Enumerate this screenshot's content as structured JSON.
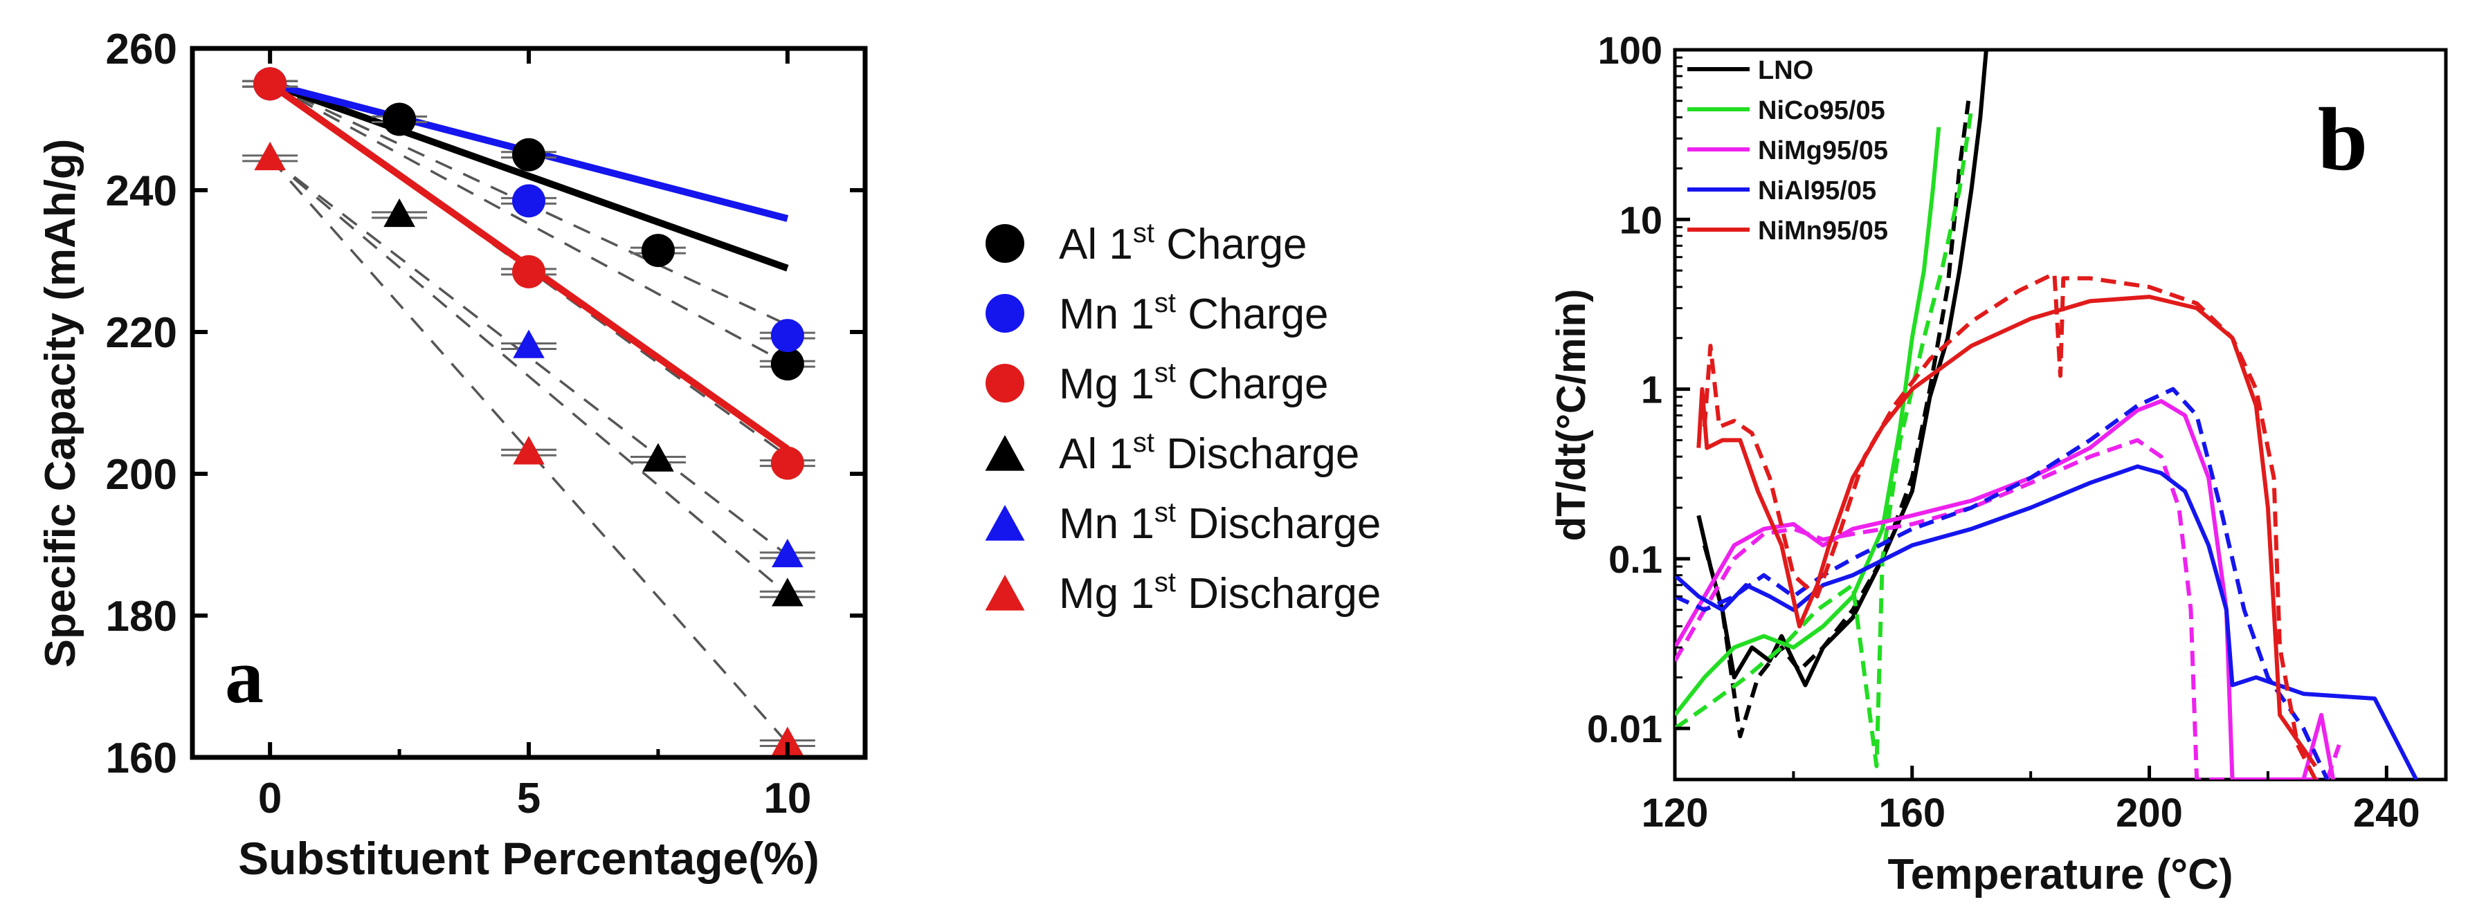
{
  "colors": {
    "black": "#000000",
    "blue": "#1515ee",
    "red": "#e11b1b",
    "green": "#22dd22",
    "magenta": "#ee22ee",
    "grey": "#555555"
  },
  "chart_data": [
    {
      "type": "scatter",
      "panel_label": "a",
      "xlabel": "Substituent Percentage(%)",
      "ylabel": "Specific Capacity (mAh/g)",
      "xlim": [
        -1.5,
        11.5
      ],
      "ylim": [
        160,
        260
      ],
      "xticks": [
        0,
        5,
        10
      ],
      "yticks": [
        160,
        180,
        200,
        220,
        240,
        260
      ],
      "series": [
        {
          "name": "Al 1st Charge",
          "label_main": "Al 1",
          "label_sup": "st",
          "label_tail": " Charge",
          "color": "#000000",
          "marker": "circle",
          "x": [
            0,
            2.5,
            5,
            7.5,
            10
          ],
          "y": [
            255,
            250,
            245,
            231.5,
            215.5
          ],
          "fit": [
            [
              0,
              255
            ],
            [
              10,
              229
            ]
          ]
        },
        {
          "name": "Mn 1st Charge",
          "label_main": "Mn 1",
          "label_sup": "st",
          "label_tail": " Charge",
          "color": "#1515ee",
          "marker": "circle",
          "x": [
            0,
            5,
            10
          ],
          "y": [
            255,
            238.5,
            219.5
          ],
          "fit": [
            [
              0,
              255
            ],
            [
              10,
              236
            ]
          ]
        },
        {
          "name": "Mg 1st Charge",
          "label_main": "Mg 1",
          "label_sup": "st",
          "label_tail": " Charge",
          "color": "#e11b1b",
          "marker": "circle",
          "x": [
            0,
            5,
            10
          ],
          "y": [
            255,
            228.5,
            201.5
          ],
          "fit": [
            [
              0,
              255
            ],
            [
              10,
              203.5
            ]
          ]
        },
        {
          "name": "Al 1st Discharge",
          "label_main": "Al 1",
          "label_sup": "st",
          "label_tail": " Discharge",
          "color": "#000000",
          "marker": "triangle",
          "x": [
            2.5,
            7.5,
            10
          ],
          "y": [
            236.5,
            202,
            183
          ],
          "fit": null
        },
        {
          "name": "Mn 1st Discharge",
          "label_main": "Mn 1",
          "label_sup": "st",
          "label_tail": " Discharge",
          "color": "#1515ee",
          "marker": "triangle",
          "x": [
            5,
            10
          ],
          "y": [
            218,
            188.5
          ],
          "fit": null
        },
        {
          "name": "Mg 1st Discharge",
          "label_main": "Mg 1",
          "label_sup": "st",
          "label_tail": " Discharge",
          "color": "#e11b1b",
          "marker": "triangle",
          "x": [
            0,
            5,
            10
          ],
          "y": [
            244.5,
            203,
            162
          ],
          "fit": null
        }
      ],
      "dashed_fits": [
        [
          [
            0,
            255
          ],
          [
            10,
            221
          ]
        ],
        [
          [
            0,
            255
          ],
          [
            10,
            215.5
          ]
        ],
        [
          [
            0,
            255
          ],
          [
            10,
            202.5
          ]
        ],
        [
          [
            0,
            244.5
          ],
          [
            10,
            188.5
          ]
        ],
        [
          [
            0,
            244.5
          ],
          [
            10,
            183
          ]
        ],
        [
          [
            0,
            244.5
          ],
          [
            10,
            162
          ]
        ]
      ],
      "legend_position": "right"
    },
    {
      "type": "line",
      "panel_label": "b",
      "xlabel": "Temperature (°C)",
      "ylabel": "dT/dt(°C/min)",
      "xscale": "linear",
      "yscale": "log",
      "xlim": [
        120,
        250
      ],
      "ylim": [
        0.005,
        100
      ],
      "xticks": [
        120,
        160,
        200,
        240
      ],
      "yticks": [
        0.01,
        0.1,
        1,
        10,
        100
      ],
      "ytick_labels": [
        "0.01",
        "0.1",
        "1",
        "10",
        "100"
      ],
      "legend_position": "top-left",
      "series": [
        {
          "name": "LNO",
          "color": "#000000",
          "style": "solid",
          "points": [
            [
              124,
              0.18
            ],
            [
              126,
              0.09
            ],
            [
              128,
              0.05
            ],
            [
              130,
              0.02
            ],
            [
              133,
              0.03
            ],
            [
              136,
              0.025
            ],
            [
              138,
              0.035
            ],
            [
              140,
              0.025
            ],
            [
              142,
              0.018
            ],
            [
              145,
              0.03
            ],
            [
              150,
              0.045
            ],
            [
              155,
              0.1
            ],
            [
              160,
              0.25
            ],
            [
              163,
              0.9
            ],
            [
              166,
              2
            ],
            [
              168,
              5
            ],
            [
              170,
              15
            ],
            [
              171.5,
              40
            ],
            [
              172.5,
              100
            ]
          ]
        },
        {
          "name": "LNO",
          "color": "#000000",
          "style": "dashed",
          "points": [
            [
              125,
              0.12
            ],
            [
              128,
              0.05
            ],
            [
              131,
              0.009
            ],
            [
              134,
              0.02
            ],
            [
              138,
              0.03
            ],
            [
              141,
              0.022
            ],
            [
              145,
              0.03
            ],
            [
              150,
              0.05
            ],
            [
              155,
              0.1
            ],
            [
              160,
              0.3
            ],
            [
              163,
              1
            ],
            [
              166,
              4
            ],
            [
              168,
              20
            ],
            [
              169.5,
              50
            ]
          ]
        },
        {
          "name": "NiCo95/05",
          "color": "#22dd22",
          "style": "solid",
          "points": [
            [
              120,
              0.012
            ],
            [
              125,
              0.02
            ],
            [
              130,
              0.03
            ],
            [
              135,
              0.035
            ],
            [
              140,
              0.03
            ],
            [
              145,
              0.04
            ],
            [
              150,
              0.06
            ],
            [
              155,
              0.15
            ],
            [
              158,
              0.6
            ],
            [
              160,
              2
            ],
            [
              162,
              5
            ],
            [
              163.5,
              15
            ],
            [
              164.5,
              35
            ]
          ]
        },
        {
          "name": "NiCo95/05",
          "color": "#22dd22",
          "style": "dashed",
          "points": [
            [
              120,
              0.01
            ],
            [
              126,
              0.014
            ],
            [
              132,
              0.02
            ],
            [
              138,
              0.03
            ],
            [
              144,
              0.05
            ],
            [
              150,
              0.07
            ],
            [
              154,
              0.006
            ],
            [
              155,
              0.1
            ],
            [
              158,
              0.5
            ],
            [
              162,
              2
            ],
            [
              165,
              5
            ],
            [
              168,
              15
            ],
            [
              170,
              45
            ]
          ]
        },
        {
          "name": "NiMg95/05",
          "color": "#ee22ee",
          "style": "solid",
          "points": [
            [
              120,
              0.03
            ],
            [
              125,
              0.06
            ],
            [
              130,
              0.12
            ],
            [
              135,
              0.15
            ],
            [
              140,
              0.16
            ],
            [
              145,
              0.12
            ],
            [
              150,
              0.15
            ],
            [
              160,
              0.18
            ],
            [
              170,
              0.22
            ],
            [
              180,
              0.3
            ],
            [
              190,
              0.45
            ],
            [
              198,
              0.75
            ],
            [
              202,
              0.85
            ],
            [
              206,
              0.7
            ],
            [
              210,
              0.3
            ],
            [
              213,
              0.05
            ],
            [
              214,
              0.005
            ],
            [
              226,
              0.005
            ],
            [
              229,
              0.012
            ],
            [
              231,
              0.005
            ]
          ]
        },
        {
          "name": "NiMg95/05",
          "color": "#ee22ee",
          "style": "dashed",
          "points": [
            [
              120,
              0.025
            ],
            [
              125,
              0.05
            ],
            [
              130,
              0.1
            ],
            [
              135,
              0.14
            ],
            [
              140,
              0.15
            ],
            [
              145,
              0.13
            ],
            [
              150,
              0.14
            ],
            [
              160,
              0.16
            ],
            [
              170,
              0.2
            ],
            [
              180,
              0.28
            ],
            [
              190,
              0.4
            ],
            [
              198,
              0.5
            ],
            [
              202,
              0.4
            ],
            [
              205,
              0.2
            ],
            [
              207,
              0.05
            ],
            [
              208,
              0.005
            ],
            [
              230,
              0.005
            ],
            [
              232,
              0.008
            ]
          ]
        },
        {
          "name": "NiAl95/05",
          "color": "#1515ee",
          "style": "solid",
          "points": [
            [
              120,
              0.08
            ],
            [
              124,
              0.06
            ],
            [
              128,
              0.05
            ],
            [
              132,
              0.07
            ],
            [
              136,
              0.06
            ],
            [
              140,
              0.05
            ],
            [
              145,
              0.07
            ],
            [
              150,
              0.08
            ],
            [
              160,
              0.12
            ],
            [
              170,
              0.15
            ],
            [
              180,
              0.2
            ],
            [
              190,
              0.28
            ],
            [
              198,
              0.35
            ],
            [
              202,
              0.32
            ],
            [
              206,
              0.25
            ],
            [
              210,
              0.12
            ],
            [
              213,
              0.05
            ],
            [
              214,
              0.018
            ],
            [
              218,
              0.02
            ],
            [
              226,
              0.016
            ],
            [
              238,
              0.015
            ],
            [
              245,
              0.005
            ]
          ]
        },
        {
          "name": "NiAl95/05",
          "color": "#1515ee",
          "style": "dashed",
          "points": [
            [
              120,
              0.06
            ],
            [
              125,
              0.05
            ],
            [
              130,
              0.06
            ],
            [
              135,
              0.08
            ],
            [
              140,
              0.06
            ],
            [
              145,
              0.08
            ],
            [
              150,
              0.1
            ],
            [
              160,
              0.15
            ],
            [
              170,
              0.2
            ],
            [
              180,
              0.3
            ],
            [
              190,
              0.5
            ],
            [
              198,
              0.8
            ],
            [
              204,
              1
            ],
            [
              208,
              0.7
            ],
            [
              212,
              0.2
            ],
            [
              216,
              0.05
            ],
            [
              220,
              0.02
            ],
            [
              226,
              0.01
            ],
            [
              230,
              0.005
            ]
          ]
        },
        {
          "name": "NiMn95/05",
          "color": "#e11b1b",
          "style": "solid",
          "points": [
            [
              124,
              0.45
            ],
            [
              124.6,
              1
            ],
            [
              125.4,
              0.45
            ],
            [
              128,
              0.5
            ],
            [
              131,
              0.5
            ],
            [
              134,
              0.25
            ],
            [
              138,
              0.12
            ],
            [
              141,
              0.04
            ],
            [
              144,
              0.07
            ],
            [
              146,
              0.12
            ],
            [
              150,
              0.3
            ],
            [
              155,
              0.6
            ],
            [
              160,
              1
            ],
            [
              170,
              1.8
            ],
            [
              180,
              2.6
            ],
            [
              190,
              3.3
            ],
            [
              200,
              3.5
            ],
            [
              208,
              3
            ],
            [
              214,
              2
            ],
            [
              218,
              0.8
            ],
            [
              220,
              0.2
            ],
            [
              221,
              0.05
            ],
            [
              222,
              0.012
            ],
            [
              228,
              0.006
            ]
          ]
        },
        {
          "name": "NiMn95/05",
          "color": "#e11b1b",
          "style": "dashed",
          "points": [
            [
              125,
              0.6
            ],
            [
              126,
              1.8
            ],
            [
              127.5,
              0.6
            ],
            [
              130,
              0.65
            ],
            [
              133,
              0.55
            ],
            [
              136,
              0.3
            ],
            [
              140,
              0.08
            ],
            [
              144,
              0.06
            ],
            [
              148,
              0.15
            ],
            [
              152,
              0.4
            ],
            [
              157,
              0.8
            ],
            [
              163,
              1.5
            ],
            [
              170,
              2.5
            ],
            [
              178,
              3.8
            ],
            [
              184,
              4.8
            ],
            [
              185,
              1.2
            ],
            [
              185.5,
              4.5
            ],
            [
              190,
              4.5
            ],
            [
              200,
              4
            ],
            [
              208,
              3.2
            ],
            [
              214,
              2
            ],
            [
              218,
              1
            ],
            [
              221,
              0.3
            ],
            [
              222,
              0.03
            ],
            [
              225,
              0.008
            ],
            [
              228,
              0.005
            ]
          ]
        }
      ]
    }
  ]
}
